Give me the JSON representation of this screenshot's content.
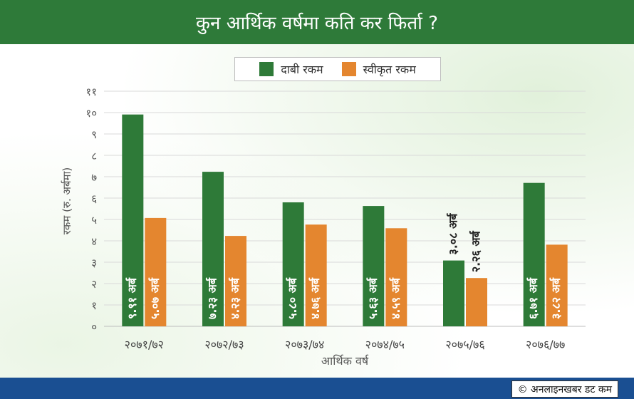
{
  "header": {
    "title": "कुन आर्थिक वर्षमा कति कर फिर्ता ?"
  },
  "footer": {
    "credit": "© अनलाइनखबर डट कम"
  },
  "colors": {
    "header": "#2e7a39",
    "claimed": "#2e7a38",
    "approved": "#e4862f",
    "footer": "#1a4f92"
  },
  "chart_data": {
    "type": "bar",
    "xlabel": "आर्थिक वर्ष",
    "ylabel": "रकम (रु. अर्बमा)",
    "ylim": [
      0,
      11
    ],
    "ytick_labels": [
      "०",
      "१",
      "२",
      "३",
      "४",
      "५",
      "६",
      "७",
      "८",
      "९",
      "१०",
      "११"
    ],
    "categories": [
      "२०७१/७२",
      "२०७२/७३",
      "२०७३/७४",
      "२०७४/७५",
      "२०७५/७६",
      "२०७६/७७"
    ],
    "legend_position": "top-center",
    "grid": true,
    "series": [
      {
        "name": "दाबी रकम",
        "color": "#2e7a38",
        "values": [
          9.91,
          7.23,
          5.8,
          5.63,
          3.08,
          6.71
        ],
        "data_labels": [
          "९.९१ अर्ब",
          "७.२३ अर्ब",
          "५.८० अर्ब",
          "५.६३ अर्ब",
          "३.०८ अर्ब",
          "६.७१ अर्ब"
        ]
      },
      {
        "name": "स्वीकृत रकम",
        "color": "#e4862f",
        "values": [
          5.07,
          4.23,
          4.76,
          4.59,
          2.26,
          3.82
        ],
        "data_labels": [
          "५.०७ अर्ब",
          "४.२३ अर्ब",
          "४.७६ अर्ब",
          "४.५९ अर्ब",
          "२.२६ अर्ब",
          "३.८२ अर्ब"
        ]
      }
    ]
  }
}
